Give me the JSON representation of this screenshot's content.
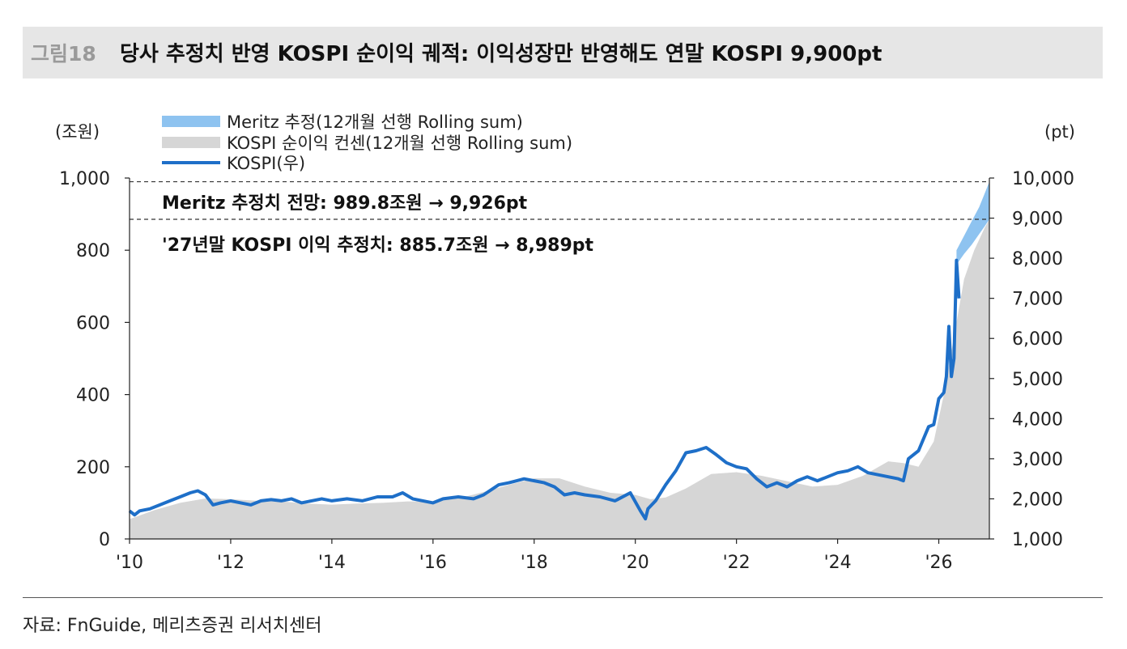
{
  "figure": {
    "number": "그림18",
    "title": "당사 추정치 반영 KOSPI 순이익 궤적: 이익성장만 반영해도 연말 KOSPI 9,900pt",
    "source": "자료: FnGuide, 메리츠증권 리서치센터"
  },
  "chart_data": {
    "type": "area",
    "left_axis_unit": "(조원)",
    "right_axis_unit": "(pt)",
    "x_tick_labels": [
      "'10",
      "'12",
      "'14",
      "'16",
      "'18",
      "'20",
      "'22",
      "'24",
      "'26"
    ],
    "x_tick_values": [
      2010,
      2012,
      2014,
      2016,
      2018,
      2020,
      2022,
      2024,
      2026
    ],
    "xlim": [
      2010,
      2027
    ],
    "y_left_ticks": [
      "0",
      "200",
      "400",
      "600",
      "800",
      "1,000"
    ],
    "y_left_values": [
      0,
      200,
      400,
      600,
      800,
      1000
    ],
    "ylim_left": [
      0,
      1000
    ],
    "y_right_ticks": [
      "1,000",
      "2,000",
      "3,000",
      "4,000",
      "5,000",
      "6,000",
      "7,000",
      "8,000",
      "9,000",
      "10,000"
    ],
    "y_right_values": [
      1000,
      2000,
      3000,
      4000,
      5000,
      6000,
      7000,
      8000,
      9000,
      10000
    ],
    "ylim_right": [
      1000,
      10000
    ],
    "legend": {
      "placement": "top-left",
      "entries": [
        {
          "label": "Meritz 추정(12개월 선행 Rolling sum)",
          "color": "#8ec3f0",
          "kind": "area"
        },
        {
          "label": "KOSPI 순이익 컨센(12개월 선행 Rolling sum)",
          "color": "#d6d6d6",
          "kind": "area"
        },
        {
          "label": "KOSPI(우)",
          "color": "#1e6fc8",
          "kind": "line"
        }
      ]
    },
    "annotations": [
      {
        "text": "Meritz 추정치 전망: 989.8조원 → 9,926pt",
        "y_left": 989.8
      },
      {
        "text": "'27년말 KOSPI 이익 추정치: 885.7조원 → 8,989pt",
        "y_left": 885.7
      }
    ],
    "series": [
      {
        "name": "KOSPI 순이익 컨센(12개월 선행 Rolling sum)",
        "axis": "left",
        "color": "#d6d6d6",
        "x": [
          2010.0,
          2010.5,
          2011.0,
          2011.5,
          2012.0,
          2012.5,
          2013.0,
          2013.5,
          2014.0,
          2014.5,
          2015.0,
          2015.5,
          2016.0,
          2016.5,
          2017.0,
          2017.5,
          2018.0,
          2018.5,
          2019.0,
          2019.5,
          2020.0,
          2020.3,
          2020.6,
          2021.0,
          2021.5,
          2022.0,
          2022.5,
          2023.0,
          2023.5,
          2024.0,
          2024.5,
          2025.0,
          2025.3,
          2025.6,
          2025.9,
          2026.1,
          2026.3,
          2026.5,
          2026.7,
          2026.9,
          2027.0
        ],
        "values": [
          55,
          80,
          100,
          112,
          110,
          106,
          104,
          98,
          95,
          98,
          100,
          104,
          104,
          112,
          130,
          150,
          168,
          168,
          145,
          128,
          122,
          110,
          115,
          140,
          180,
          185,
          175,
          160,
          145,
          150,
          175,
          215,
          210,
          200,
          270,
          400,
          560,
          720,
          800,
          860,
          885.7
        ]
      },
      {
        "name": "Meritz 추정(12개월 선행 Rolling sum)",
        "axis": "left",
        "color": "#8ec3f0",
        "x": [
          2026.35,
          2026.5,
          2026.65,
          2026.8,
          2026.9,
          2027.0
        ],
        "values": [
          800,
          840,
          880,
          920,
          955,
          989.8
        ],
        "base": [
          760,
          790,
          815,
          845,
          865,
          885.7
        ]
      },
      {
        "name": "KOSPI(우)",
        "axis": "right",
        "color": "#1e6fc8",
        "x": [
          2010.0,
          2010.1,
          2010.2,
          2010.4,
          2010.6,
          2010.8,
          2011.0,
          2011.2,
          2011.35,
          2011.5,
          2011.65,
          2011.8,
          2012.0,
          2012.2,
          2012.4,
          2012.6,
          2012.8,
          2013.0,
          2013.2,
          2013.4,
          2013.6,
          2013.8,
          2014.0,
          2014.3,
          2014.6,
          2014.9,
          2015.2,
          2015.4,
          2015.6,
          2015.8,
          2016.0,
          2016.2,
          2016.5,
          2016.8,
          2017.0,
          2017.3,
          2017.5,
          2017.8,
          2018.0,
          2018.2,
          2018.4,
          2018.6,
          2018.8,
          2019.0,
          2019.3,
          2019.6,
          2019.9,
          2020.1,
          2020.2,
          2020.25,
          2020.4,
          2020.6,
          2020.8,
          2021.0,
          2021.2,
          2021.4,
          2021.6,
          2021.8,
          2022.0,
          2022.2,
          2022.4,
          2022.6,
          2022.8,
          2023.0,
          2023.2,
          2023.4,
          2023.6,
          2023.8,
          2024.0,
          2024.2,
          2024.4,
          2024.6,
          2024.8,
          2025.0,
          2025.2,
          2025.3,
          2025.4,
          2025.6,
          2025.8,
          2025.9,
          2026.0,
          2026.1,
          2026.15,
          2026.2,
          2026.25,
          2026.3,
          2026.35,
          2026.4
        ],
        "values": [
          1700,
          1600,
          1700,
          1750,
          1850,
          1950,
          2050,
          2150,
          2200,
          2100,
          1850,
          1900,
          1950,
          1900,
          1850,
          1950,
          1980,
          1950,
          2000,
          1900,
          1950,
          2000,
          1950,
          2000,
          1950,
          2050,
          2050,
          2150,
          2000,
          1950,
          1900,
          2000,
          2050,
          2000,
          2100,
          2350,
          2400,
          2500,
          2450,
          2400,
          2300,
          2100,
          2150,
          2100,
          2050,
          1950,
          2150,
          1700,
          1500,
          1750,
          1950,
          2350,
          2700,
          3150,
          3200,
          3280,
          3100,
          2900,
          2800,
          2750,
          2500,
          2300,
          2400,
          2300,
          2450,
          2550,
          2450,
          2550,
          2650,
          2700,
          2800,
          2650,
          2600,
          2550,
          2500,
          2450,
          3000,
          3200,
          3800,
          3850,
          4500,
          4650,
          5050,
          6300,
          5050,
          5500,
          7950,
          7000
        ]
      }
    ]
  }
}
